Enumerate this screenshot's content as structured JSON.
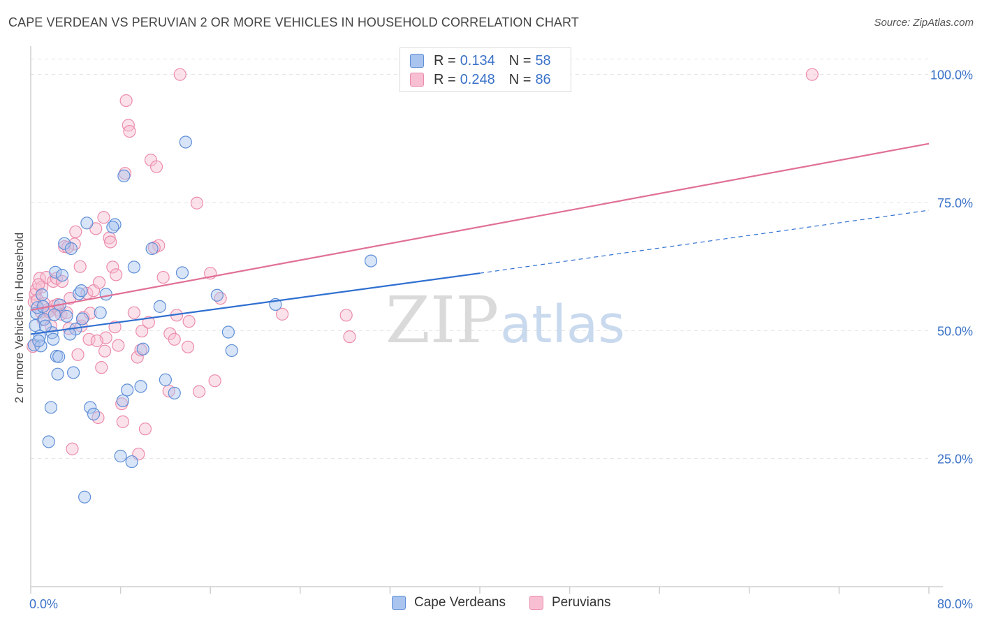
{
  "title": "CAPE VERDEAN VS PERUVIAN 2 OR MORE VEHICLES IN HOUSEHOLD CORRELATION CHART",
  "source": "Source: ZipAtlas.com",
  "watermark": {
    "zip": "ZIP",
    "atlas": "atlas"
  },
  "legend_top": [
    {
      "r_label": "R =",
      "r_value": "0.134",
      "n_label": "N =",
      "n_value": "58"
    },
    {
      "r_label": "R =",
      "r_value": "0.248",
      "n_label": "N =",
      "n_value": "86"
    }
  ],
  "legend_bottom": [
    "Cape Verdeans",
    "Peruvians"
  ],
  "chart_data": {
    "type": "scatter",
    "title": "CAPE VERDEAN VS PERUVIAN 2 OR MORE VEHICLES IN HOUSEHOLD CORRELATION CHART",
    "xlabel": "",
    "ylabel": "2 or more Vehicles in Household",
    "xlim": [
      0,
      80
    ],
    "ylim": [
      0,
      105
    ],
    "x_tick_labels": [
      {
        "value": 0,
        "label": "0.0%"
      },
      {
        "value": 80,
        "label": "80.0%"
      }
    ],
    "y_tick_labels": [
      {
        "value": 25,
        "label": "25.0%"
      },
      {
        "value": 50,
        "label": "50.0%"
      },
      {
        "value": 75,
        "label": "75.0%"
      },
      {
        "value": 100,
        "label": "100.0%"
      }
    ],
    "grid": true,
    "legend_position": "top-center",
    "colors": {
      "cape_fill": "#a9c4ee",
      "cape_stroke": "#5f8fd8",
      "cape_line": "#2f6fd0",
      "peru_fill": "#f7bfd1",
      "peru_stroke": "#ec8bab",
      "peru_line": "#e07096",
      "axis_text": "#3a72c8",
      "grid": "#e3e3e3"
    },
    "series": [
      {
        "name": "Cape Verdeans",
        "r": 0.134,
        "n": 58,
        "trend": {
          "x0": 0,
          "y0": 49.3,
          "x1": 40,
          "y1": 61.2,
          "dashed_to_x": 80,
          "dashed_to_y": 73.5
        },
        "points": [
          [
            0.3,
            47.2
          ],
          [
            0.4,
            51.0
          ],
          [
            0.5,
            53.4
          ],
          [
            0.6,
            54.5
          ],
          [
            0.8,
            48.9
          ],
          [
            0.9,
            47.0
          ],
          [
            1.0,
            57.0
          ],
          [
            1.1,
            54.7
          ],
          [
            1.2,
            52.2
          ],
          [
            1.6,
            28.3
          ],
          [
            1.8,
            35.0
          ],
          [
            1.9,
            49.6
          ],
          [
            2.0,
            48.3
          ],
          [
            2.2,
            61.4
          ],
          [
            2.3,
            45.0
          ],
          [
            2.4,
            41.5
          ],
          [
            2.5,
            44.9
          ],
          [
            2.6,
            55.0
          ],
          [
            2.8,
            60.8
          ],
          [
            3.0,
            67.0
          ],
          [
            3.2,
            52.8
          ],
          [
            3.6,
            66.0
          ],
          [
            3.8,
            41.8
          ],
          [
            4.0,
            50.3
          ],
          [
            4.3,
            57.2
          ],
          [
            4.5,
            57.8
          ],
          [
            4.6,
            52.3
          ],
          [
            4.8,
            17.5
          ],
          [
            5.0,
            71.0
          ],
          [
            5.3,
            35.0
          ],
          [
            5.6,
            33.7
          ],
          [
            6.2,
            53.5
          ],
          [
            6.7,
            57.1
          ],
          [
            7.5,
            70.7
          ],
          [
            8.0,
            25.5
          ],
          [
            8.2,
            36.3
          ],
          [
            8.3,
            80.2
          ],
          [
            8.6,
            38.4
          ],
          [
            9.0,
            24.4
          ],
          [
            9.2,
            62.4
          ],
          [
            9.8,
            39.1
          ],
          [
            10.0,
            46.4
          ],
          [
            10.8,
            66.0
          ],
          [
            11.5,
            54.7
          ],
          [
            12.0,
            40.4
          ],
          [
            12.8,
            37.8
          ],
          [
            13.5,
            61.3
          ],
          [
            13.8,
            86.8
          ],
          [
            16.6,
            56.9
          ],
          [
            17.6,
            49.7
          ],
          [
            17.9,
            46.1
          ],
          [
            21.8,
            55.1
          ],
          [
            30.3,
            63.6
          ],
          [
            1.3,
            50.9
          ],
          [
            3.5,
            49.3
          ],
          [
            2.1,
            53.1
          ],
          [
            7.3,
            70.2
          ],
          [
            0.7,
            48.0
          ]
        ]
      },
      {
        "name": "Peruvians",
        "r": 0.248,
        "n": 86,
        "trend": {
          "x0": 0,
          "y0": 54.0,
          "x1": 80,
          "y1": 86.5
        },
        "points": [
          [
            0.2,
            46.9
          ],
          [
            0.3,
            55.6
          ],
          [
            0.4,
            57.1
          ],
          [
            0.5,
            58.0
          ],
          [
            0.6,
            56.0
          ],
          [
            0.8,
            60.2
          ],
          [
            0.9,
            53.6
          ],
          [
            1.0,
            58.5
          ],
          [
            1.1,
            52.1
          ],
          [
            1.2,
            55.3
          ],
          [
            1.4,
            60.4
          ],
          [
            1.5,
            54.1
          ],
          [
            1.6,
            53.7
          ],
          [
            1.8,
            50.9
          ],
          [
            2.0,
            59.6
          ],
          [
            2.1,
            54.8
          ],
          [
            2.3,
            60.2
          ],
          [
            2.5,
            54.0
          ],
          [
            2.7,
            53.2
          ],
          [
            2.8,
            59.6
          ],
          [
            3.0,
            66.4
          ],
          [
            3.2,
            53.5
          ],
          [
            3.4,
            50.4
          ],
          [
            3.5,
            56.3
          ],
          [
            3.7,
            26.9
          ],
          [
            3.9,
            66.9
          ],
          [
            4.0,
            69.3
          ],
          [
            4.2,
            45.3
          ],
          [
            4.4,
            62.5
          ],
          [
            4.5,
            50.9
          ],
          [
            4.7,
            52.6
          ],
          [
            5.0,
            57.3
          ],
          [
            5.2,
            48.3
          ],
          [
            5.3,
            53.4
          ],
          [
            5.6,
            57.8
          ],
          [
            5.8,
            69.9
          ],
          [
            6.0,
            33.0
          ],
          [
            6.1,
            59.4
          ],
          [
            6.3,
            42.8
          ],
          [
            6.5,
            72.1
          ],
          [
            6.6,
            46.0
          ],
          [
            6.7,
            48.6
          ],
          [
            7.0,
            68.1
          ],
          [
            7.1,
            67.3
          ],
          [
            7.3,
            62.4
          ],
          [
            7.5,
            50.7
          ],
          [
            7.6,
            60.9
          ],
          [
            7.8,
            47.1
          ],
          [
            8.1,
            35.7
          ],
          [
            8.2,
            32.2
          ],
          [
            8.4,
            80.7
          ],
          [
            8.5,
            94.9
          ],
          [
            8.7,
            90.1
          ],
          [
            8.8,
            88.9
          ],
          [
            9.2,
            53.5
          ],
          [
            9.5,
            44.8
          ],
          [
            9.6,
            25.9
          ],
          [
            9.8,
            46.2
          ],
          [
            9.9,
            49.9
          ],
          [
            10.2,
            30.8
          ],
          [
            10.5,
            51.6
          ],
          [
            10.7,
            83.3
          ],
          [
            11.2,
            82.0
          ],
          [
            11.4,
            66.6
          ],
          [
            11.8,
            60.4
          ],
          [
            12.3,
            38.2
          ],
          [
            12.4,
            49.4
          ],
          [
            12.8,
            48.3
          ],
          [
            13.0,
            53.0
          ],
          [
            13.3,
            100.0
          ],
          [
            14.0,
            46.8
          ],
          [
            14.1,
            51.8
          ],
          [
            14.8,
            74.9
          ],
          [
            15.0,
            38.1
          ],
          [
            16.0,
            61.2
          ],
          [
            16.4,
            40.2
          ],
          [
            16.9,
            56.3
          ],
          [
            22.4,
            53.2
          ],
          [
            28.1,
            53.0
          ],
          [
            28.4,
            48.8
          ],
          [
            69.6,
            100.0
          ],
          [
            11.0,
            66.2
          ],
          [
            5.9,
            48.0
          ],
          [
            3.3,
            66.3
          ],
          [
            0.7,
            59.0
          ],
          [
            2.4,
            55.1
          ]
        ]
      }
    ]
  }
}
